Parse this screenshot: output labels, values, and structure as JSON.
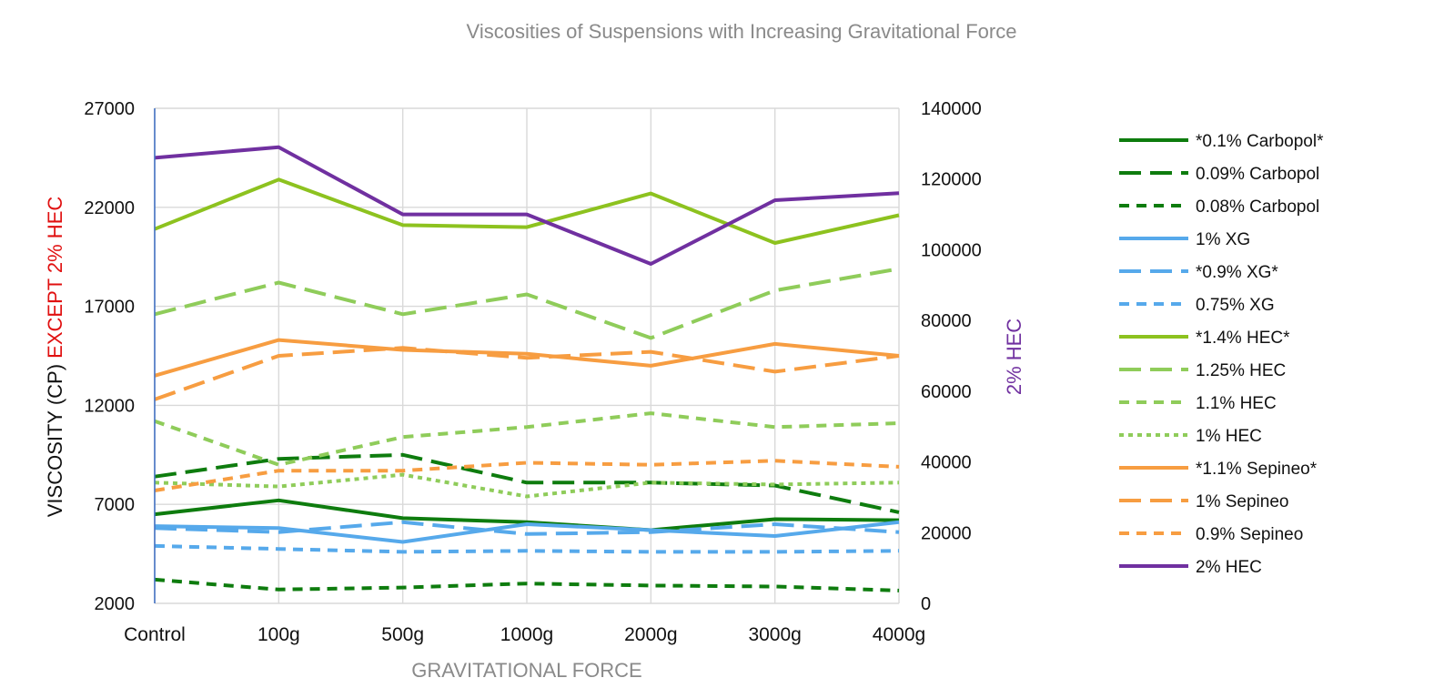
{
  "chart_data": {
    "type": "line",
    "title": "Viscosities of Suspensions with Increasing Gravitational Force",
    "xlabel": "GRAVITATIONAL FORCE",
    "ylabel_parts": [
      {
        "text": "VISCOSITY (CP) ",
        "color": "#111111"
      },
      {
        "text": "EXCEPT 2% HEC",
        "color": "#e01010"
      }
    ],
    "y2label": "2% HEC",
    "y2label_color": "#7030a0",
    "categories": [
      "Control",
      "100g",
      "500g",
      "1000g",
      "2000g",
      "3000g",
      "4000g"
    ],
    "ylim": [
      2000,
      27000
    ],
    "yticks": [
      "2000",
      "7000",
      "12000",
      "17000",
      "22000",
      "27000"
    ],
    "y2lim": [
      0,
      140000
    ],
    "y2ticks": [
      "0",
      "20000",
      "40000",
      "60000",
      "80000",
      "100000",
      "120000",
      "140000"
    ],
    "grid": true,
    "legend_position": "right",
    "series": [
      {
        "name": "*0.1% Carbopol*",
        "color": "#0e7c0e",
        "dash": "solid",
        "axis": "left",
        "values": [
          6500,
          7200,
          6300,
          6100,
          5700,
          6250,
          6200
        ]
      },
      {
        "name": "0.09% Carbopol",
        "color": "#0e7c0e",
        "dash": "long",
        "axis": "left",
        "values": [
          8400,
          9300,
          9500,
          8100,
          8100,
          7950,
          6600
        ]
      },
      {
        "name": "0.08% Carbopol",
        "color": "#0e7c0e",
        "dash": "short",
        "axis": "left",
        "values": [
          3200,
          2700,
          2800,
          3000,
          2900,
          2850,
          2650
        ]
      },
      {
        "name": "1% XG",
        "color": "#56a9eb",
        "dash": "solid",
        "axis": "left",
        "values": [
          5900,
          5800,
          5100,
          6000,
          5700,
          5400,
          6100
        ]
      },
      {
        "name": "*0.9% XG*",
        "color": "#56a9eb",
        "dash": "long",
        "axis": "left",
        "values": [
          5800,
          5600,
          6100,
          5500,
          5600,
          6000,
          5600
        ]
      },
      {
        "name": "0.75% XG",
        "color": "#56a9eb",
        "dash": "short",
        "axis": "left",
        "values": [
          4900,
          4750,
          4600,
          4650,
          4600,
          4600,
          4650
        ]
      },
      {
        "name": "*1.4% HEC*",
        "color": "#8dc21f",
        "dash": "solid",
        "axis": "left",
        "values": [
          20900,
          23400,
          21100,
          21000,
          22700,
          20200,
          21600
        ]
      },
      {
        "name": "1.25% HEC",
        "color": "#8fcc5a",
        "dash": "long",
        "axis": "left",
        "values": [
          16600,
          18200,
          16600,
          17600,
          15400,
          17800,
          18900
        ]
      },
      {
        "name": "1.1% HEC",
        "color": "#8fcc5a",
        "dash": "short",
        "axis": "left",
        "values": [
          11200,
          9000,
          10400,
          10900,
          11600,
          10900,
          11100
        ]
      },
      {
        "name": "1% HEC",
        "color": "#8fcc5a",
        "dash": "dot",
        "axis": "left",
        "values": [
          8100,
          7900,
          8500,
          7400,
          8100,
          8000,
          8100
        ]
      },
      {
        "name": "*1.1% Sepineo*",
        "color": "#f79d41",
        "dash": "solid",
        "axis": "left",
        "values": [
          13500,
          15300,
          14800,
          14600,
          14000,
          15100,
          14500
        ]
      },
      {
        "name": "1% Sepineo",
        "color": "#f79d41",
        "dash": "long",
        "axis": "left",
        "values": [
          12300,
          14500,
          14900,
          14400,
          14700,
          13700,
          14500
        ]
      },
      {
        "name": "0.9% Sepineo",
        "color": "#f79d41",
        "dash": "short",
        "axis": "left",
        "values": [
          7700,
          8700,
          8700,
          9100,
          9000,
          9200,
          8900
        ]
      },
      {
        "name": "2% HEC",
        "color": "#7030a0",
        "dash": "solid",
        "axis": "right",
        "values": [
          126000,
          129000,
          110000,
          110000,
          96000,
          114000,
          116000
        ]
      }
    ]
  }
}
